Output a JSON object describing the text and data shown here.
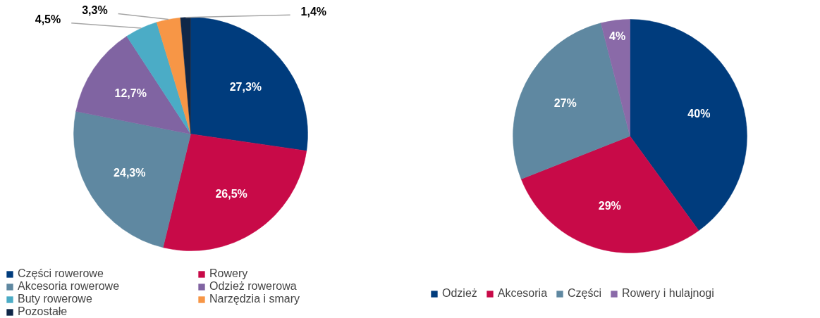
{
  "chart_data": [
    {
      "type": "pie",
      "categories": [
        "Części rowerowe",
        "Rowery",
        "Akcesoria rowerowe",
        "Odzież rowerowa",
        "Buty rowerowe",
        "Narzędzia i smary",
        "Pozostałe"
      ],
      "values": [
        27.3,
        26.5,
        24.3,
        12.7,
        4.5,
        3.3,
        1.4
      ],
      "colors": [
        "#003c7d",
        "#c80a48",
        "#5f88a1",
        "#8064a2",
        "#4bacc6",
        "#f79646",
        "#0f2748"
      ],
      "value_labels": [
        "27,3%",
        "26,5%",
        "24,3%",
        "12,7%",
        "4,5%",
        "3,3%",
        "1,4%"
      ],
      "legend": "bottom left"
    },
    {
      "type": "pie",
      "categories": [
        "Odzież",
        "Akcesoria",
        "Części",
        "Rowery i hulajnogi"
      ],
      "values": [
        40,
        29,
        27,
        4
      ],
      "colors": [
        "#003c7d",
        "#c80a48",
        "#5f88a1",
        "#8a6aa8"
      ],
      "value_labels": [
        "40%",
        "29%",
        "27%",
        "4%"
      ],
      "legend": "bottom"
    }
  ]
}
